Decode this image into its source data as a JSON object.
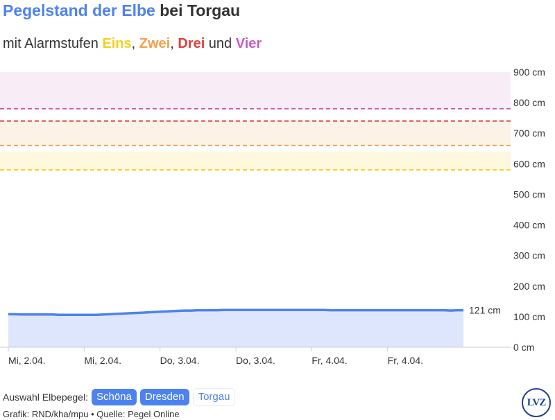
{
  "header": {
    "title_accent": "Pegelstand der Elbe",
    "title_rest": " bei Torgau",
    "subtitle_prefix": "mit Alarmstufen ",
    "level_1": "Eins",
    "sep_1": ", ",
    "level_2": "Zwei",
    "sep_2": ", ",
    "level_3": "Drei",
    "sep_3": " und ",
    "level_4": "Vier"
  },
  "colors": {
    "accent": "#4d82ee",
    "level_1": "#f5cf1c",
    "level_2": "#f5a04a",
    "level_3": "#e43d3d",
    "level_4": "#c85bc4",
    "area_fill": "#dde6fd",
    "band_1": "#fdf8de",
    "band_2": "#fdf2e6",
    "band_4": "#f8ecf7"
  },
  "chart_data": {
    "type": "area",
    "title": "Pegelstand der Elbe bei Torgau",
    "subtitle": "mit Alarmstufen Eins, Zwei, Drei und Vier",
    "ylim": [
      0,
      900
    ],
    "yticks": [
      0,
      100,
      200,
      300,
      400,
      500,
      600,
      700,
      800,
      900
    ],
    "ytick_labels": [
      "0 cm",
      "100 cm",
      "200 cm",
      "300 cm",
      "400 cm",
      "500 cm",
      "600 cm",
      "700 cm",
      "800 cm",
      "900 cm"
    ],
    "xtick_labels": [
      "Mi, 2.04.",
      "Mi, 2.04.",
      "Do, 3.04.",
      "Do, 3.04.",
      "Fr, 4.04.",
      "Fr, 4.04."
    ],
    "xtick_positions": [
      0,
      12,
      24,
      36,
      48,
      60
    ],
    "x_count": 73,
    "series": [
      {
        "values": [
          108,
          108,
          107,
          107,
          107,
          107,
          107,
          107,
          106,
          106,
          106,
          106,
          106,
          106,
          106,
          107,
          108,
          109,
          110,
          111,
          112,
          113,
          114,
          115,
          116,
          117,
          118,
          119,
          120,
          120,
          121,
          121,
          121,
          121,
          122,
          122,
          122,
          122,
          122,
          122,
          122,
          122,
          122,
          122,
          122,
          122,
          122,
          122,
          122,
          122,
          122,
          121,
          121,
          121,
          121,
          121,
          121,
          121,
          121,
          121,
          121,
          121,
          121,
          121,
          121,
          121,
          121,
          121,
          121,
          121,
          120,
          121,
          121
        ]
      }
    ],
    "last_value_label": "121 cm",
    "alarm_levels": [
      {
        "name": "Eins",
        "value": 580,
        "band_to": 640
      },
      {
        "name": "Zwei",
        "value": 660,
        "band_to": 740
      },
      {
        "name": "Drei",
        "value": 740,
        "band_to": 780
      },
      {
        "name": "Vier",
        "value": 780,
        "band_to": 900
      }
    ],
    "grid": false
  },
  "footer": {
    "selector_label": "Auswahl Elbepegel:",
    "options": [
      "Schöna",
      "Dresden",
      "Torgau"
    ],
    "selected": "Torgau",
    "credits": "Grafik: RND/kha/mpu • Quelle: Pegel Online",
    "logo_text": "LVZ"
  }
}
